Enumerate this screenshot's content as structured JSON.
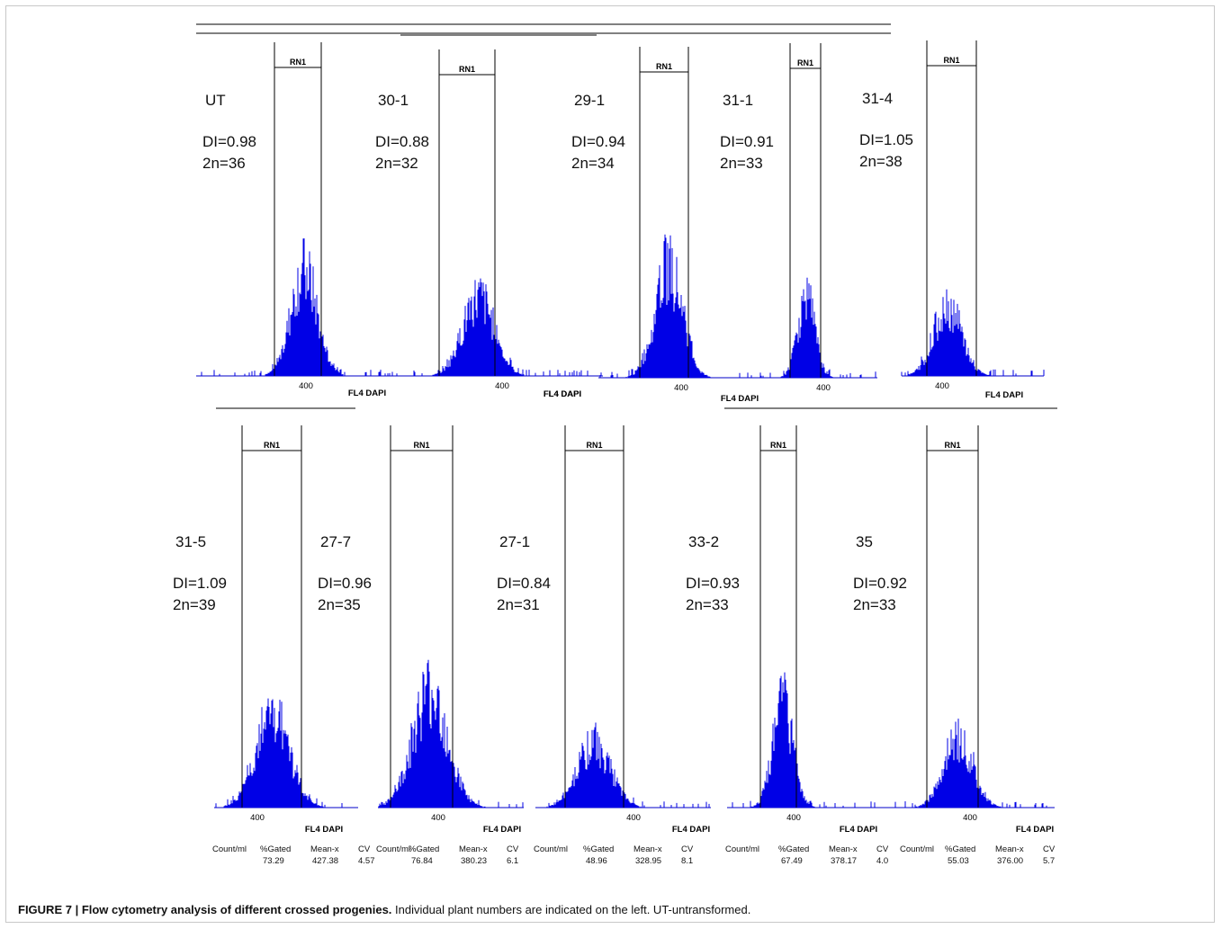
{
  "caption": {
    "label": "FIGURE 7 | Flow cytometry analysis of different crossed progenies.",
    "text": " Individual plant numbers are indicated on the left. UT-untransformed."
  },
  "gate_label": "RN1",
  "x_axis_label": "FL4 DAPI",
  "x_tick_label": "400",
  "stats_headers": {
    "count": "Count/ml",
    "gated": "%Gated",
    "mean": "Mean-x",
    "cv": "CV"
  },
  "panels": [
    {
      "sample": "UT",
      "di": "DI=0.98",
      "chromosomes": "2n=36",
      "peak_height": 0.36
    },
    {
      "sample": "30-1",
      "di": "DI=0.88",
      "chromosomes": "2n=32",
      "peak_height": 0.27
    },
    {
      "sample": "29-1",
      "di": "DI=0.94",
      "chromosomes": "2n=34",
      "peak_height": 0.38
    },
    {
      "sample": "31-1",
      "di": "DI=0.91",
      "chromosomes": "2n=33",
      "peak_height": 0.27
    },
    {
      "sample": "31-4",
      "di": "DI=1.05",
      "chromosomes": "2n=38",
      "peak_height": 0.24
    },
    {
      "sample": "31-5",
      "di": "DI=1.09",
      "chromosomes": "2n=39",
      "peak_height": 0.32,
      "stats": {
        "gated": "73.29",
        "mean": "427.38",
        "cv": "4.57"
      }
    },
    {
      "sample": "27-7",
      "di": "DI=0.96",
      "chromosomes": "2n=35",
      "peak_height": 0.4,
      "stats": {
        "gated": "76.84",
        "mean": "380.23",
        "cv": "6.1"
      }
    },
    {
      "sample": "27-1",
      "di": "DI=0.84",
      "chromosomes": "2n=31",
      "peak_height": 0.22,
      "stats": {
        "gated": "48.96",
        "mean": "328.95",
        "cv": "8.1"
      }
    },
    {
      "sample": "33-2",
      "di": "DI=0.93",
      "chromosomes": "2n=33",
      "peak_height": 0.35,
      "stats": {
        "gated": "67.49",
        "mean": "378.17",
        "cv": "4.0"
      }
    },
    {
      "sample": "35",
      "di": "DI=0.92",
      "chromosomes": "2n=33",
      "peak_height": 0.24,
      "stats": {
        "gated": "55.03",
        "mean": "376.00",
        "cv": "5.7"
      }
    }
  ]
}
